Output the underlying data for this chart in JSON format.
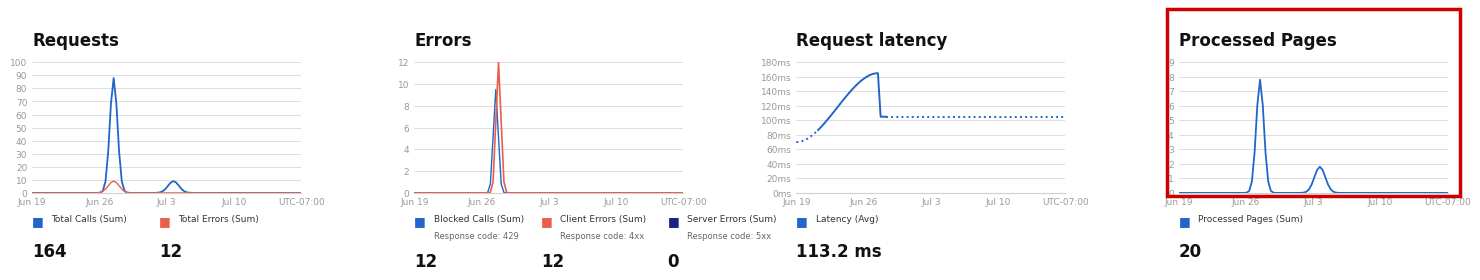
{
  "panel1": {
    "title": "Requests",
    "yticks": [
      0,
      10,
      20,
      30,
      40,
      50,
      60,
      70,
      80,
      90,
      100
    ],
    "ylim": [
      0,
      100
    ],
    "xtick_labels": [
      "Jun 19",
      "Jun 26",
      "Jul 3",
      "Jul 10",
      "UTC-07:00"
    ],
    "legend1_label": "Total Calls (Sum)",
    "legend1_color": "#2166c8",
    "legend1_value": "164",
    "legend2_label": "Total Errors (Sum)",
    "legend2_color": "#e8604c",
    "legend2_value": "12"
  },
  "panel2": {
    "title": "Errors",
    "yticks": [
      0,
      2,
      4,
      6,
      8,
      10,
      12
    ],
    "ylim": [
      0,
      12
    ],
    "xtick_labels": [
      "Jun 19",
      "Jun 26",
      "Jul 3",
      "Jul 10",
      "UTC-07:00"
    ],
    "legend1_label": "Blocked Calls (Sum)",
    "legend1_sublabel": "Response code: 429",
    "legend1_color": "#2166c8",
    "legend1_value": "12",
    "legend2_label": "Client Errors (Sum)",
    "legend2_sublabel": "Response code: 4xx",
    "legend2_color": "#e8604c",
    "legend2_value": "12",
    "legend3_label": "Server Errors (Sum)",
    "legend3_sublabel": "Response code: 5xx",
    "legend3_color": "#1a237e",
    "legend3_value": "0"
  },
  "panel3": {
    "title": "Request latency",
    "ytick_labels": [
      "0ms",
      "20ms",
      "40ms",
      "60ms",
      "80ms",
      "100ms",
      "120ms",
      "140ms",
      "160ms",
      "180ms"
    ],
    "ylim": [
      0,
      180
    ],
    "xtick_labels": [
      "Jun 19",
      "Jun 26",
      "Jul 3",
      "Jul 10",
      "UTC-07:00"
    ],
    "legend1_label": "Latency (Avg)",
    "legend1_color": "#2166c8",
    "legend1_value": "113.2 ms"
  },
  "panel4": {
    "title": "Processed Pages",
    "yticks": [
      0,
      1,
      2,
      3,
      4,
      5,
      6,
      7,
      8,
      9
    ],
    "ylim": [
      0,
      9
    ],
    "xtick_labels": [
      "Jun 19",
      "Jun 26",
      "Jul 3",
      "Jul 10",
      "UTC-07:00"
    ],
    "legend1_label": "Processed Pages (Sum)",
    "legend1_color": "#2166c8",
    "legend1_value": "20",
    "border_color": "#cc0000"
  },
  "bg_color": "#ffffff",
  "grid_color": "#d0d0d0",
  "tick_color": "#999999",
  "title_fontsize": 12,
  "tick_fontsize": 6.5,
  "legend_fontsize": 6.5,
  "value_fontsize": 12
}
